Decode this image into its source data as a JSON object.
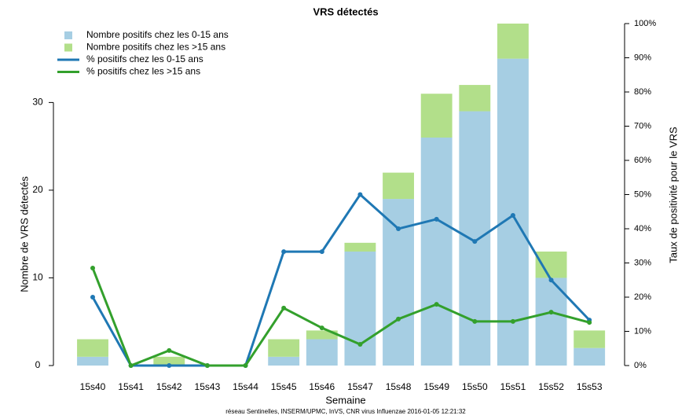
{
  "chart_data": {
    "type": "bar",
    "title": "VRS  détectés",
    "x_label": "Semaine",
    "y_label": "Nombre de  VRS  détectés",
    "y2_label": "Taux de positivité pour le VRS",
    "footer": "réseau Sentinelles, INSERM/UPMC, InVS, CNR virus Influenzae 2016-01-05 12:21:32",
    "categories": [
      "15s40",
      "15s41",
      "15s42",
      "15s43",
      "15s44",
      "15s45",
      "15s46",
      "15s47",
      "15s48",
      "15s49",
      "15s50",
      "15s51",
      "15s52",
      "15s53"
    ],
    "stacked": true,
    "legend": "top-left",
    "series": [
      {
        "name": "Nombre positifs chez les  0-15 ans",
        "type": "bar",
        "color": "#a6cee3",
        "values": [
          1,
          0,
          0,
          0,
          0,
          1,
          3,
          13,
          19,
          26,
          29,
          35,
          10,
          2
        ]
      },
      {
        "name": "Nombre positifs chez les  >15 ans",
        "type": "bar",
        "color": "#b2df8a",
        "values": [
          2,
          0,
          1,
          0,
          0,
          2,
          1,
          1,
          3,
          5,
          3,
          4,
          3,
          2
        ]
      },
      {
        "name": "% positifs chez les  0-15 ans",
        "type": "line",
        "axis": "y2",
        "color": "#1f78b4",
        "values": [
          20,
          0,
          0,
          0,
          0,
          33.3,
          33.3,
          50,
          40,
          42.8,
          36.3,
          43.9,
          25,
          13.3
        ]
      },
      {
        "name": "% positifs chez les  >15 ans",
        "type": "line",
        "axis": "y2",
        "color": "#33a02c",
        "values": [
          28.5,
          0,
          4.4,
          0,
          0,
          16.8,
          11,
          6.2,
          13.6,
          17.9,
          12.9,
          12.9,
          15.6,
          12.6
        ]
      }
    ],
    "ylim": [
      0,
      39
    ],
    "yticks": [
      0,
      10,
      20,
      30
    ],
    "y2lim": [
      0,
      100
    ],
    "y2ticks": [
      {
        "value": 0,
        "label": "0%"
      },
      {
        "value": 10,
        "label": "10%"
      },
      {
        "value": 20,
        "label": "20%"
      },
      {
        "value": 30,
        "label": "30%"
      },
      {
        "value": 40,
        "label": "40%"
      },
      {
        "value": 50,
        "label": "50%"
      },
      {
        "value": 60,
        "label": "60%"
      },
      {
        "value": 70,
        "label": "70%"
      },
      {
        "value": 80,
        "label": "80%"
      },
      {
        "value": 90,
        "label": "90%"
      },
      {
        "value": 100,
        "label": "100%"
      }
    ]
  }
}
